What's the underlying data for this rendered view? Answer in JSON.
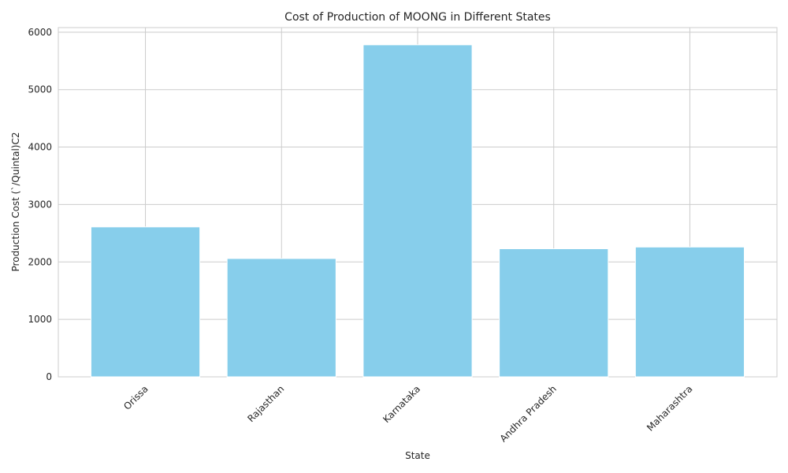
{
  "chart_data": {
    "type": "bar",
    "title": "Cost of Production of MOONG in Different States",
    "xlabel": "State",
    "ylabel": "Production Cost (`/Quintal)C2",
    "categories": [
      "Orissa",
      "Rajasthan",
      "Karnataka",
      "Andhra Pradesh",
      "Maharashtra"
    ],
    "values": [
      2610,
      2060,
      5780,
      2230,
      2260
    ],
    "ylim": [
      0,
      6080
    ],
    "yticks": [
      "0",
      "1000",
      "2000",
      "3000",
      "4000",
      "5000",
      "6000"
    ],
    "bar_color": "#87ceeb",
    "grid": true,
    "xtick_rotation": 45
  }
}
